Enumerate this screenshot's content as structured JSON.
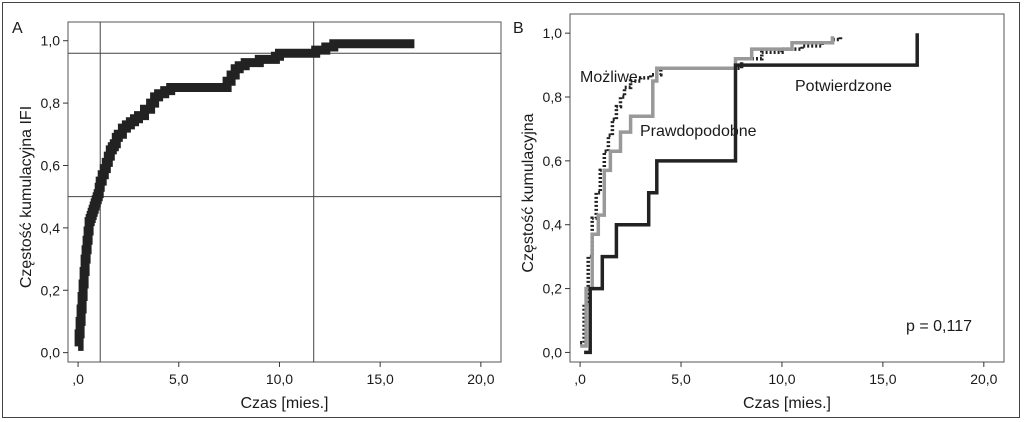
{
  "chart_data": [
    {
      "panel_label": "A",
      "type": "line",
      "title": "",
      "xlabel": "Czas [mies.]",
      "ylabel": "Częstość kumulacyjna IFI",
      "xlim": [
        -0.5,
        21
      ],
      "ylim": [
        -0.03,
        1.06
      ],
      "x_ticks": [
        ",0",
        "5,0",
        "10,0",
        "15,0",
        "20,0"
      ],
      "x_tick_values": [
        0,
        5,
        10,
        15,
        20
      ],
      "y_ticks": [
        "0,0",
        "0,2",
        "0,4",
        "0,6",
        "0,8",
        "1,0"
      ],
      "y_tick_values": [
        0,
        0.2,
        0.4,
        0.6,
        0.8,
        1.0
      ],
      "reference_lines": {
        "horizontal": [
          0.5,
          0.96
        ],
        "vertical": [
          1.1,
          11.7
        ]
      },
      "legend": "none",
      "grid": false,
      "series": [
        {
          "color": "#222222",
          "line_width": "thick",
          "x": [
            0,
            0.05,
            0.1,
            0.15,
            0.2,
            0.25,
            0.3,
            0.35,
            0.4,
            0.45,
            0.5,
            0.55,
            0.6,
            0.65,
            0.7,
            0.75,
            0.8,
            0.85,
            0.9,
            0.95,
            1.0,
            1.05,
            1.1,
            1.2,
            1.3,
            1.4,
            1.5,
            1.6,
            1.7,
            1.8,
            1.9,
            2.0,
            2.2,
            2.4,
            2.6,
            2.8,
            3.0,
            3.3,
            3.6,
            3.8,
            4.0,
            4.3,
            4.6,
            5.0,
            5.5,
            6.0,
            7.4,
            7.6,
            7.8,
            8.0,
            8.3,
            9.0,
            9.8,
            10.0,
            11.0,
            11.8,
            12.3,
            12.7,
            16.7
          ],
          "y": [
            0.02,
            0.06,
            0.1,
            0.14,
            0.18,
            0.22,
            0.26,
            0.3,
            0.33,
            0.36,
            0.39,
            0.42,
            0.43,
            0.44,
            0.45,
            0.46,
            0.47,
            0.48,
            0.49,
            0.5,
            0.51,
            0.53,
            0.55,
            0.57,
            0.59,
            0.61,
            0.63,
            0.65,
            0.66,
            0.67,
            0.69,
            0.7,
            0.72,
            0.73,
            0.74,
            0.75,
            0.76,
            0.78,
            0.8,
            0.82,
            0.83,
            0.84,
            0.85,
            0.85,
            0.85,
            0.85,
            0.87,
            0.89,
            0.91,
            0.92,
            0.93,
            0.94,
            0.95,
            0.96,
            0.96,
            0.97,
            0.98,
            0.99,
            0.99
          ]
        }
      ]
    },
    {
      "panel_label": "B",
      "type": "line",
      "title": "",
      "xlabel": "Czas [mies.]",
      "ylabel": "Częstość kumulacyjna",
      "xlim": [
        -0.5,
        21
      ],
      "ylim": [
        -0.03,
        1.06
      ],
      "x_ticks": [
        ",0",
        "5,0",
        "10,0",
        "15,0",
        "20,0"
      ],
      "x_tick_values": [
        0,
        5,
        10,
        15,
        20
      ],
      "y_ticks": [
        "0,0",
        "0,2",
        "0,4",
        "0,6",
        "0,8",
        "1,0"
      ],
      "y_tick_values": [
        0,
        0.2,
        0.4,
        0.6,
        0.8,
        1.0
      ],
      "legend": "none",
      "grid": false,
      "annotation": "p = 0,117",
      "series": [
        {
          "name": "Możliwe",
          "color": "#222222",
          "dash": "dotted",
          "x": [
            0,
            0.2,
            0.4,
            0.6,
            0.8,
            1.0,
            1.2,
            1.4,
            1.6,
            1.8,
            2.0,
            2.2,
            2.5,
            3.0,
            3.5,
            4.0,
            5.0,
            6.0,
            7.0,
            8.0,
            9.0,
            10.0,
            11.0,
            12.0,
            12.5,
            12.9
          ],
          "y": [
            0.03,
            0.15,
            0.3,
            0.42,
            0.5,
            0.57,
            0.63,
            0.68,
            0.73,
            0.77,
            0.8,
            0.83,
            0.85,
            0.86,
            0.87,
            0.89,
            0.89,
            0.89,
            0.89,
            0.92,
            0.94,
            0.95,
            0.96,
            0.97,
            0.98,
            0.99
          ]
        },
        {
          "name": "Prawdopodobne",
          "color": "#999999",
          "dash": "solid",
          "x": [
            0,
            0.3,
            0.6,
            0.9,
            1.2,
            1.5,
            2.0,
            2.5,
            3.0,
            3.6,
            3.8,
            4.2,
            6.0,
            7.7,
            8.5,
            10.5,
            12.5
          ],
          "y": [
            0.02,
            0.2,
            0.37,
            0.43,
            0.57,
            0.63,
            0.69,
            0.74,
            0.74,
            0.85,
            0.89,
            0.89,
            0.89,
            0.92,
            0.95,
            0.97,
            0.99
          ]
        },
        {
          "name": "Potwierdzone",
          "color": "#222222",
          "dash": "solid",
          "x": [
            0.2,
            0.5,
            1.1,
            1.8,
            2.8,
            3.4,
            3.8,
            7.4,
            7.7,
            16.7
          ],
          "y": [
            0,
            0.2,
            0.3,
            0.4,
            0.4,
            0.5,
            0.6,
            0.6,
            0.9,
            1.0
          ]
        }
      ]
    }
  ]
}
